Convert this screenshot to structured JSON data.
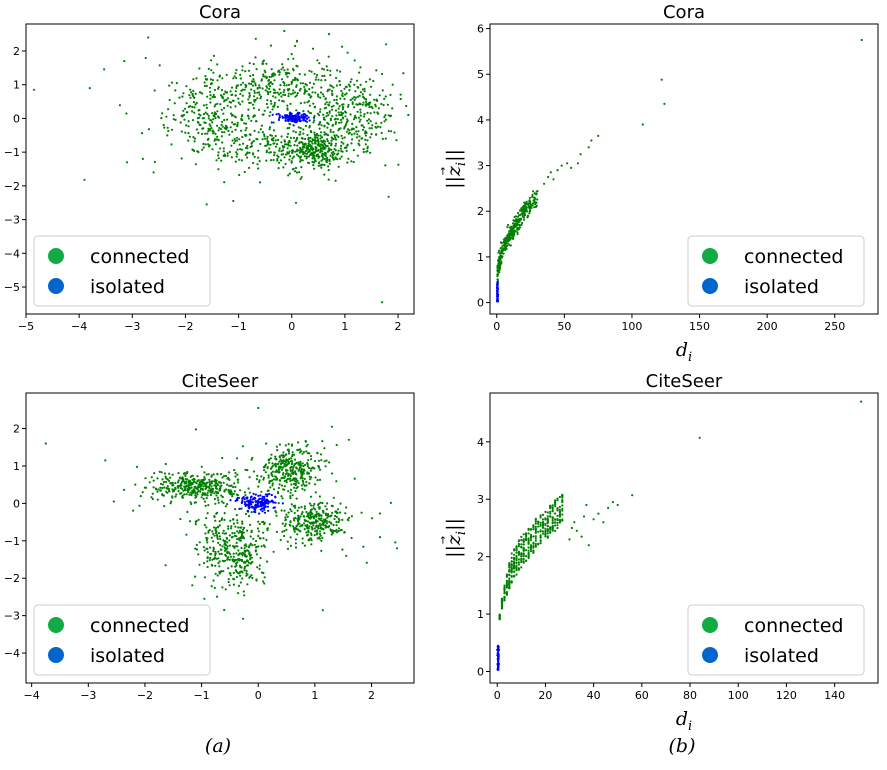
{
  "colors": {
    "connected": "#008000",
    "isolated": "#0000ff",
    "legend_connected": "#11aa44",
    "legend_isolated": "#0066cc"
  },
  "captions": [
    "(a)",
    "(b)"
  ],
  "chart_data": [
    {
      "type": "scatter",
      "title": "Cora",
      "xlabel": "",
      "ylabel": "",
      "xlim": [
        -5.0,
        2.3
      ],
      "ylim": [
        -5.8,
        2.8
      ],
      "xticks": [
        -5,
        -4,
        -3,
        -2,
        -1,
        0,
        1,
        2
      ],
      "yticks": [
        -5,
        -4,
        -3,
        -2,
        -1,
        0,
        1,
        2
      ],
      "legend": {
        "position": "bottom-left",
        "entries": [
          "connected",
          "isolated"
        ]
      },
      "series": [
        {
          "name": "connected",
          "clusters": [
            {
              "kind": "ring",
              "cx": -0.2,
              "cy": 0.1,
              "r": 1.15,
              "spread": 0.38,
              "n": 1050,
              "seed": 11
            },
            {
              "kind": "blob",
              "cx": 0.5,
              "cy": -0.95,
              "sx": 0.3,
              "sy": 0.28,
              "n": 200,
              "seed": 12
            },
            {
              "kind": "blob",
              "cx": -0.3,
              "cy": 0.3,
              "sx": 1.4,
              "sy": 1.1,
              "n": 110,
              "seed": 13
            }
          ],
          "points": [
            [
              -4.85,
              0.85
            ],
            [
              -3.9,
              -1.82
            ],
            [
              -3.8,
              0.9
            ],
            [
              -3.15,
              1.7
            ],
            [
              -3.1,
              -1.3
            ],
            [
              -2.7,
              2.4
            ],
            [
              -2.8,
              -1.2
            ],
            [
              -2.6,
              -1.6
            ],
            [
              1.7,
              -5.45
            ],
            [
              0.7,
              2.5
            ],
            [
              1.05,
              1.95
            ],
            [
              1.9,
              1.0
            ],
            [
              -1.6,
              -2.55
            ],
            [
              -1.1,
              -2.45
            ],
            [
              -2.2,
              0.45
            ]
          ]
        },
        {
          "name": "isolated",
          "clusters": [
            {
              "kind": "blob",
              "cx": 0.05,
              "cy": 0.02,
              "sx": 0.14,
              "sy": 0.07,
              "n": 130,
              "seed": 14
            }
          ],
          "points": []
        }
      ]
    },
    {
      "type": "scatter",
      "title": "Cora",
      "xlabel": "d_i",
      "ylabel": "||z_i||",
      "xlim": [
        -5,
        282
      ],
      "ylim": [
        -0.25,
        6.1
      ],
      "xticks": [
        0,
        50,
        100,
        150,
        200,
        250
      ],
      "yticks": [
        0,
        1,
        2,
        3,
        4,
        5,
        6
      ],
      "legend": {
        "position": "bottom-right",
        "entries": [
          "connected",
          "isolated"
        ]
      },
      "series": [
        {
          "name": "connected",
          "trend": {
            "kind": "power",
            "a": 0.42,
            "b": 0.46,
            "jitter": 0.18,
            "xmax": 30,
            "n": 340,
            "seed": 21
          },
          "points": [
            [
              35,
              2.6
            ],
            [
              38,
              2.75
            ],
            [
              40,
              2.85
            ],
            [
              42,
              2.7
            ],
            [
              45,
              2.9
            ],
            [
              48,
              3.0
            ],
            [
              52,
              3.05
            ],
            [
              55,
              2.95
            ],
            [
              60,
              3.05
            ],
            [
              62,
              3.25
            ],
            [
              68,
              3.4
            ],
            [
              70,
              3.55
            ],
            [
              75,
              3.65
            ],
            [
              108,
              3.9
            ],
            [
              122,
              4.88
            ],
            [
              124,
              4.35
            ],
            [
              270,
              5.75
            ]
          ]
        },
        {
          "name": "isolated",
          "trend": {
            "kind": "column",
            "x": 0.5,
            "ymin": 0.02,
            "ymax": 0.45,
            "n": 60,
            "seed": 22
          },
          "points": []
        }
      ]
    },
    {
      "type": "scatter",
      "title": "CiteSeer",
      "xlabel": "",
      "ylabel": "",
      "xlim": [
        -4.1,
        2.75
      ],
      "ylim": [
        -4.8,
        2.95
      ],
      "xticks": [
        -4,
        -3,
        -2,
        -1,
        0,
        1,
        2
      ],
      "yticks": [
        -4,
        -3,
        -2,
        -1,
        0,
        1,
        2
      ],
      "legend": {
        "position": "bottom-left",
        "entries": [
          "connected",
          "isolated"
        ]
      },
      "series": [
        {
          "name": "connected",
          "clusters": [
            {
              "kind": "blob",
              "cx": -1.1,
              "cy": 0.45,
              "sx": 0.42,
              "sy": 0.18,
              "n": 360,
              "seed": 31
            },
            {
              "kind": "blob",
              "cx": 0.55,
              "cy": 0.9,
              "sx": 0.28,
              "sy": 0.32,
              "n": 300,
              "seed": 32
            },
            {
              "kind": "blob",
              "cx": 1.0,
              "cy": -0.5,
              "sx": 0.28,
              "sy": 0.25,
              "n": 280,
              "seed": 33
            },
            {
              "kind": "blob",
              "cx": -0.45,
              "cy": -1.3,
              "sx": 0.3,
              "sy": 0.5,
              "n": 330,
              "seed": 34
            },
            {
              "kind": "blob",
              "cx": -0.1,
              "cy": -0.2,
              "sx": 1.0,
              "sy": 0.9,
              "n": 150,
              "seed": 35
            }
          ],
          "points": [
            [
              -3.75,
              1.6
            ],
            [
              -2.7,
              1.15
            ],
            [
              -2.55,
              0.05
            ],
            [
              0.0,
              2.55
            ],
            [
              1.6,
              1.7
            ],
            [
              2.15,
              -0.9
            ],
            [
              2.45,
              -1.2
            ],
            [
              -0.6,
              -2.85
            ],
            [
              -0.95,
              -2.55
            ],
            [
              1.3,
              2.05
            ]
          ]
        },
        {
          "name": "isolated",
          "clusters": [
            {
              "kind": "blob",
              "cx": 0.0,
              "cy": 0.02,
              "sx": 0.16,
              "sy": 0.12,
              "n": 150,
              "seed": 36
            }
          ],
          "points": []
        }
      ]
    },
    {
      "type": "scatter",
      "title": "CiteSeer",
      "xlabel": "d_i",
      "ylabel": "||z_i||",
      "xlim": [
        -3,
        158
      ],
      "ylim": [
        -0.2,
        4.85
      ],
      "xticks": [
        0,
        20,
        40,
        60,
        80,
        100,
        120,
        140
      ],
      "yticks": [
        0,
        1,
        2,
        3,
        4
      ],
      "legend": {
        "position": "bottom-right",
        "entries": [
          "connected",
          "isolated"
        ]
      },
      "series": [
        {
          "name": "connected",
          "trend": {
            "kind": "stripes",
            "xmax": 26,
            "n": 460,
            "seed": 41
          },
          "points": [
            [
              30,
              2.3
            ],
            [
              31,
              2.5
            ],
            [
              32,
              2.6
            ],
            [
              33,
              2.45
            ],
            [
              36,
              2.7
            ],
            [
              37,
              2.9
            ],
            [
              40,
              2.65
            ],
            [
              42,
              2.75
            ],
            [
              44,
              2.6
            ],
            [
              46,
              2.85
            ],
            [
              48,
              2.95
            ],
            [
              50,
              2.9
            ],
            [
              56,
              3.07
            ],
            [
              84,
              4.07
            ],
            [
              151,
              4.7
            ],
            [
              35,
              2.35
            ],
            [
              38,
              2.2
            ]
          ]
        },
        {
          "name": "isolated",
          "trend": {
            "kind": "column",
            "x": 0.4,
            "ymin": 0.02,
            "ymax": 0.45,
            "n": 60,
            "seed": 42
          },
          "points": []
        }
      ]
    }
  ]
}
